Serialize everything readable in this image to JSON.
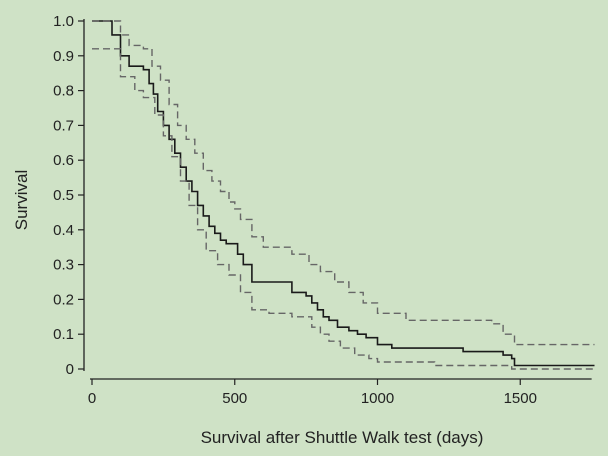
{
  "chart_data": {
    "type": "line",
    "title": "",
    "xlabel": "Survival after Shuttle Walk test (days)",
    "ylabel": "Survival",
    "xlim": [
      0,
      1750
    ],
    "ylim": [
      0,
      1.0
    ],
    "x_ticks": [
      0,
      500,
      1000,
      1500
    ],
    "x_tick_labels": [
      "0",
      "500",
      "1000",
      "1500"
    ],
    "y_ticks": [
      0,
      0.1,
      0.2,
      0.3,
      0.4,
      0.5,
      0.6,
      0.7,
      0.8,
      0.9,
      1.0
    ],
    "y_tick_labels": [
      "0",
      "0.1",
      "0.2",
      "0.3",
      "0.4",
      "0.5",
      "0.6",
      "0.7",
      "0.8",
      "0.9",
      "1.0"
    ],
    "grid": false,
    "legend": "none",
    "colors": {
      "background": "#cfe2c6",
      "axis": "#222222",
      "estimate": "#1a1a1a",
      "ci": "#666666"
    },
    "series": [
      {
        "style": "solid",
        "x": [
          0,
          60,
          70,
          100,
          130,
          180,
          200,
          215,
          230,
          250,
          270,
          290,
          310,
          330,
          350,
          370,
          390,
          410,
          430,
          450,
          470,
          490,
          510,
          530,
          560,
          600,
          700,
          750,
          770,
          790,
          810,
          830,
          860,
          900,
          930,
          960,
          1000,
          1050,
          1100,
          1200,
          1300,
          1400,
          1440,
          1470,
          1480,
          1760
        ],
        "y": [
          1.0,
          1.0,
          0.96,
          0.9,
          0.87,
          0.86,
          0.82,
          0.79,
          0.74,
          0.7,
          0.66,
          0.62,
          0.58,
          0.54,
          0.51,
          0.47,
          0.44,
          0.41,
          0.39,
          0.37,
          0.36,
          0.36,
          0.33,
          0.3,
          0.25,
          0.25,
          0.22,
          0.21,
          0.19,
          0.17,
          0.15,
          0.14,
          0.12,
          0.11,
          0.1,
          0.09,
          0.07,
          0.06,
          0.06,
          0.06,
          0.05,
          0.05,
          0.04,
          0.03,
          0.01,
          0.01
        ]
      },
      {
        "style": "dashed",
        "x": [
          0,
          70,
          100,
          130,
          180,
          210,
          240,
          270,
          300,
          330,
          360,
          390,
          420,
          450,
          480,
          500,
          520,
          560,
          600,
          700,
          760,
          800,
          850,
          900,
          950,
          1000,
          1100,
          1200,
          1300,
          1400,
          1440,
          1480,
          1760
        ],
        "y": [
          1.0,
          1.0,
          0.96,
          0.93,
          0.92,
          0.87,
          0.83,
          0.76,
          0.7,
          0.66,
          0.62,
          0.57,
          0.54,
          0.51,
          0.48,
          0.46,
          0.43,
          0.38,
          0.35,
          0.33,
          0.3,
          0.28,
          0.25,
          0.22,
          0.19,
          0.16,
          0.14,
          0.14,
          0.14,
          0.13,
          0.1,
          0.07,
          0.07
        ]
      },
      {
        "style": "dashed",
        "x": [
          0,
          60,
          100,
          150,
          180,
          220,
          250,
          280,
          310,
          340,
          370,
          400,
          440,
          480,
          520,
          560,
          620,
          700,
          770,
          800,
          830,
          870,
          920,
          970,
          1000,
          1100,
          1200,
          1300,
          1400,
          1470,
          1500,
          1760
        ],
        "y": [
          0.92,
          0.92,
          0.84,
          0.8,
          0.78,
          0.73,
          0.67,
          0.61,
          0.54,
          0.47,
          0.4,
          0.34,
          0.3,
          0.27,
          0.22,
          0.17,
          0.16,
          0.15,
          0.12,
          0.1,
          0.08,
          0.06,
          0.04,
          0.03,
          0.02,
          0.02,
          0.01,
          0.01,
          0.01,
          0.0,
          0.0,
          0.0
        ]
      }
    ]
  }
}
